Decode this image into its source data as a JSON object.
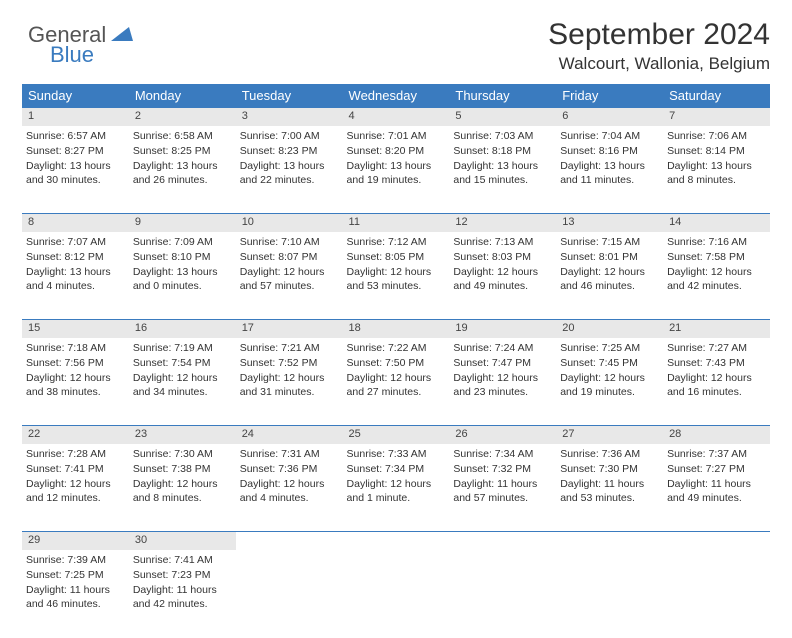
{
  "logo": {
    "part1": "General",
    "part2": "Blue",
    "tri_color": "#3a7bbf"
  },
  "header": {
    "title": "September 2024",
    "location": "Walcourt, Wallonia, Belgium"
  },
  "colors": {
    "header_bg": "#3a7bbf",
    "header_text": "#ffffff",
    "daynum_bg": "#e8e8e8",
    "border": "#3a7bbf",
    "body_text": "#333333"
  },
  "weekdays": [
    "Sunday",
    "Monday",
    "Tuesday",
    "Wednesday",
    "Thursday",
    "Friday",
    "Saturday"
  ],
  "weeks": [
    [
      {
        "n": "1",
        "sunrise": "6:57 AM",
        "sunset": "8:27 PM",
        "day": "13 hours and 30 minutes."
      },
      {
        "n": "2",
        "sunrise": "6:58 AM",
        "sunset": "8:25 PM",
        "day": "13 hours and 26 minutes."
      },
      {
        "n": "3",
        "sunrise": "7:00 AM",
        "sunset": "8:23 PM",
        "day": "13 hours and 22 minutes."
      },
      {
        "n": "4",
        "sunrise": "7:01 AM",
        "sunset": "8:20 PM",
        "day": "13 hours and 19 minutes."
      },
      {
        "n": "5",
        "sunrise": "7:03 AM",
        "sunset": "8:18 PM",
        "day": "13 hours and 15 minutes."
      },
      {
        "n": "6",
        "sunrise": "7:04 AM",
        "sunset": "8:16 PM",
        "day": "13 hours and 11 minutes."
      },
      {
        "n": "7",
        "sunrise": "7:06 AM",
        "sunset": "8:14 PM",
        "day": "13 hours and 8 minutes."
      }
    ],
    [
      {
        "n": "8",
        "sunrise": "7:07 AM",
        "sunset": "8:12 PM",
        "day": "13 hours and 4 minutes."
      },
      {
        "n": "9",
        "sunrise": "7:09 AM",
        "sunset": "8:10 PM",
        "day": "13 hours and 0 minutes."
      },
      {
        "n": "10",
        "sunrise": "7:10 AM",
        "sunset": "8:07 PM",
        "day": "12 hours and 57 minutes."
      },
      {
        "n": "11",
        "sunrise": "7:12 AM",
        "sunset": "8:05 PM",
        "day": "12 hours and 53 minutes."
      },
      {
        "n": "12",
        "sunrise": "7:13 AM",
        "sunset": "8:03 PM",
        "day": "12 hours and 49 minutes."
      },
      {
        "n": "13",
        "sunrise": "7:15 AM",
        "sunset": "8:01 PM",
        "day": "12 hours and 46 minutes."
      },
      {
        "n": "14",
        "sunrise": "7:16 AM",
        "sunset": "7:58 PM",
        "day": "12 hours and 42 minutes."
      }
    ],
    [
      {
        "n": "15",
        "sunrise": "7:18 AM",
        "sunset": "7:56 PM",
        "day": "12 hours and 38 minutes."
      },
      {
        "n": "16",
        "sunrise": "7:19 AM",
        "sunset": "7:54 PM",
        "day": "12 hours and 34 minutes."
      },
      {
        "n": "17",
        "sunrise": "7:21 AM",
        "sunset": "7:52 PM",
        "day": "12 hours and 31 minutes."
      },
      {
        "n": "18",
        "sunrise": "7:22 AM",
        "sunset": "7:50 PM",
        "day": "12 hours and 27 minutes."
      },
      {
        "n": "19",
        "sunrise": "7:24 AM",
        "sunset": "7:47 PM",
        "day": "12 hours and 23 minutes."
      },
      {
        "n": "20",
        "sunrise": "7:25 AM",
        "sunset": "7:45 PM",
        "day": "12 hours and 19 minutes."
      },
      {
        "n": "21",
        "sunrise": "7:27 AM",
        "sunset": "7:43 PM",
        "day": "12 hours and 16 minutes."
      }
    ],
    [
      {
        "n": "22",
        "sunrise": "7:28 AM",
        "sunset": "7:41 PM",
        "day": "12 hours and 12 minutes."
      },
      {
        "n": "23",
        "sunrise": "7:30 AM",
        "sunset": "7:38 PM",
        "day": "12 hours and 8 minutes."
      },
      {
        "n": "24",
        "sunrise": "7:31 AM",
        "sunset": "7:36 PM",
        "day": "12 hours and 4 minutes."
      },
      {
        "n": "25",
        "sunrise": "7:33 AM",
        "sunset": "7:34 PM",
        "day": "12 hours and 1 minute."
      },
      {
        "n": "26",
        "sunrise": "7:34 AM",
        "sunset": "7:32 PM",
        "day": "11 hours and 57 minutes."
      },
      {
        "n": "27",
        "sunrise": "7:36 AM",
        "sunset": "7:30 PM",
        "day": "11 hours and 53 minutes."
      },
      {
        "n": "28",
        "sunrise": "7:37 AM",
        "sunset": "7:27 PM",
        "day": "11 hours and 49 minutes."
      }
    ],
    [
      {
        "n": "29",
        "sunrise": "7:39 AM",
        "sunset": "7:25 PM",
        "day": "11 hours and 46 minutes."
      },
      {
        "n": "30",
        "sunrise": "7:41 AM",
        "sunset": "7:23 PM",
        "day": "11 hours and 42 minutes."
      },
      null,
      null,
      null,
      null,
      null
    ]
  ],
  "labels": {
    "sunrise": "Sunrise:",
    "sunset": "Sunset:",
    "daylight": "Daylight:"
  }
}
